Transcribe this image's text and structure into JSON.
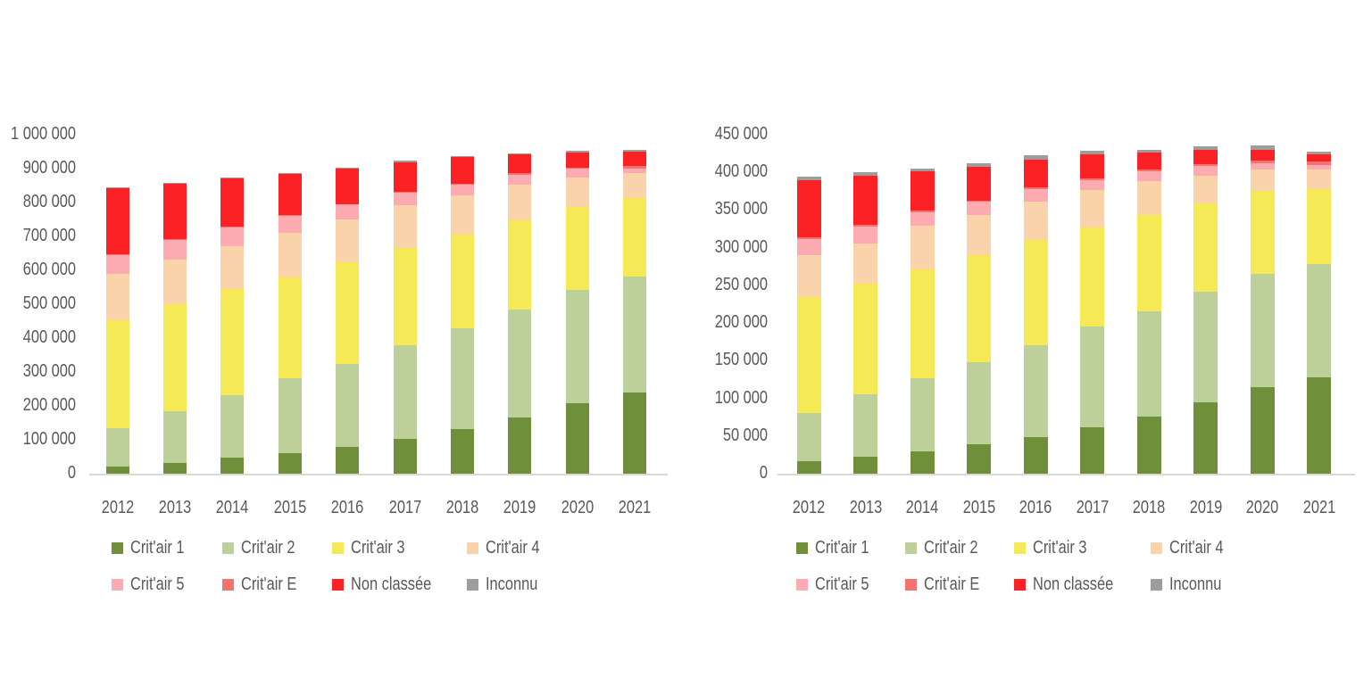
{
  "page": {
    "background": "#ffffff"
  },
  "colors": {
    "crit1": "#6f8f3a",
    "crit2": "#bdd09a",
    "crit3": "#f5e956",
    "crit4": "#fbd3ab",
    "crit5": "#fdabb0",
    "critE": "#f47270",
    "non_classee": "#fb2125",
    "inconnu": "#9d9d9d",
    "axis_text": "#595959",
    "axis_line": "#d9d9d9"
  },
  "legend": {
    "position": "bottom",
    "rows": 2,
    "items_per_row": 4,
    "labels": [
      "Crit'air 1",
      "Crit'air 2",
      "Crit'air 3",
      "Crit'air 4",
      "Crit'air 5",
      "Crit'air E",
      "Non classée",
      "Inconnu"
    ]
  },
  "chart_data": [
    {
      "type": "bar",
      "stacked": true,
      "title": "",
      "xlabel": "",
      "ylabel": "",
      "grid": false,
      "categories": [
        "2012",
        "2013",
        "2014",
        "2015",
        "2016",
        "2017",
        "2018",
        "2019",
        "2020",
        "2021"
      ],
      "ylim": [
        0,
        1000000
      ],
      "ytick_step": 100000,
      "ytick_labels_topdown": [
        "1 000 000",
        "900 000",
        "800 000",
        "700 000",
        "600 000",
        "500 000",
        "400 000",
        "300 000",
        "200 000",
        "100 000",
        "0"
      ],
      "series": [
        {
          "name": "Crit'air 1",
          "color_key": "crit1",
          "color": "#6f8f3a",
          "values": [
            20000,
            32000,
            47000,
            60000,
            79000,
            103000,
            132000,
            167000,
            208000,
            239000
          ]
        },
        {
          "name": "Crit'air 2",
          "color_key": "crit2",
          "color": "#bdd09a",
          "values": [
            114000,
            152000,
            185000,
            222000,
            244000,
            277000,
            296000,
            318000,
            334000,
            342000
          ]
        },
        {
          "name": "Crit'air 3",
          "color_key": "crit3",
          "color": "#f5e956",
          "values": [
            318000,
            316000,
            313000,
            298000,
            301000,
            287000,
            277000,
            263000,
            245000,
            232000
          ]
        },
        {
          "name": "Crit'air 4",
          "color_key": "crit4",
          "color": "#fbd3ab",
          "values": [
            138000,
            132000,
            126000,
            131000,
            126000,
            125000,
            116000,
            104000,
            88000,
            73000
          ]
        },
        {
          "name": "Crit'air 5",
          "color_key": "crit5",
          "color": "#fdabb0",
          "values": [
            55000,
            57000,
            55000,
            50000,
            44000,
            37000,
            33000,
            30000,
            24000,
            15000
          ]
        },
        {
          "name": "Crit'air E",
          "color_key": "critE",
          "color": "#f47270",
          "values": [
            2000,
            2000,
            2000,
            2000,
            2000,
            2000,
            2000,
            5000,
            5000,
            8000
          ]
        },
        {
          "name": "Non classée",
          "color_key": "non_classee",
          "color": "#fb2125",
          "values": [
            194000,
            164000,
            143000,
            121000,
            103000,
            88000,
            78000,
            54000,
            43000,
            41000
          ]
        },
        {
          "name": "Inconnu",
          "color_key": "inconnu",
          "color": "#9d9d9d",
          "values": [
            4000,
            4000,
            4000,
            4000,
            4000,
            5000,
            4000,
            5000,
            5000,
            5000
          ]
        }
      ]
    },
    {
      "type": "bar",
      "stacked": true,
      "title": "",
      "xlabel": "",
      "ylabel": "",
      "grid": false,
      "categories": [
        "2012",
        "2013",
        "2014",
        "2015",
        "2016",
        "2017",
        "2018",
        "2019",
        "2020",
        "2021"
      ],
      "ylim": [
        0,
        450000
      ],
      "ytick_step": 50000,
      "ytick_labels_topdown": [
        "450 000",
        "400 000",
        "350 000",
        "300 000",
        "250 000",
        "200 000",
        "150 000",
        "100 000",
        "50 000",
        "0"
      ],
      "series": [
        {
          "name": "Crit'air 1",
          "color_key": "crit1",
          "color": "#6f8f3a",
          "values": [
            16000,
            22000,
            30000,
            39000,
            49000,
            62000,
            76000,
            95000,
            115000,
            128000
          ]
        },
        {
          "name": "Crit'air 2",
          "color_key": "crit2",
          "color": "#bdd09a",
          "values": [
            65000,
            83000,
            97000,
            109000,
            122000,
            133000,
            140000,
            146000,
            150000,
            150000
          ]
        },
        {
          "name": "Crit'air 3",
          "color_key": "crit3",
          "color": "#f5e956",
          "values": [
            153000,
            147000,
            144000,
            142000,
            139000,
            132000,
            128000,
            118000,
            110000,
            100000
          ]
        },
        {
          "name": "Crit'air 4",
          "color_key": "crit4",
          "color": "#fbd3ab",
          "values": [
            56000,
            54000,
            58000,
            53000,
            51000,
            50000,
            44000,
            37000,
            29000,
            26000
          ]
        },
        {
          "name": "Crit'air 5",
          "color_key": "crit5",
          "color": "#fdabb0",
          "values": [
            22000,
            22000,
            18000,
            18000,
            17000,
            13000,
            14000,
            13000,
            8000,
            6000
          ]
        },
        {
          "name": "Crit'air E",
          "color_key": "critE",
          "color": "#f47270",
          "values": [
            2000,
            2000,
            2000,
            2000,
            2000,
            2000,
            2000,
            2000,
            4000,
            4000
          ]
        },
        {
          "name": "Non classée",
          "color_key": "non_classee",
          "color": "#fb2125",
          "values": [
            76000,
            66000,
            52000,
            45000,
            37000,
            32000,
            22000,
            19000,
            14000,
            10000
          ]
        },
        {
          "name": "Inconnu",
          "color_key": "inconnu",
          "color": "#9d9d9d",
          "values": [
            4000,
            4000,
            4000,
            4000,
            6000,
            5000,
            4000,
            5000,
            6000,
            4000
          ]
        }
      ]
    }
  ]
}
